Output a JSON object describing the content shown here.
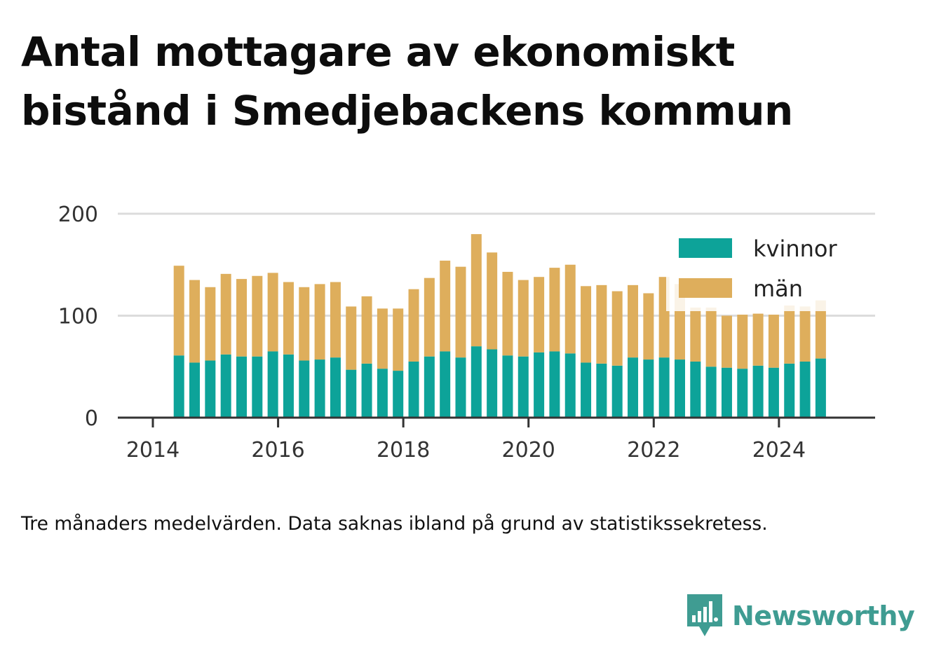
{
  "title": "Antal mottagare av ekonomiskt bistånd i Smedjebackens kommun",
  "note": "Tre månaders medelvärden. Data saknas ibland på grund av statistikssekretess.",
  "brand": {
    "name": "Newsworthy",
    "icon": "newsworthy-bar-chart-icon",
    "color": "#3f9c92"
  },
  "chart_data": {
    "type": "bar",
    "stacked": true,
    "x": [
      "2014-06",
      "2014-09",
      "2014-12",
      "2015-03",
      "2015-06",
      "2015-09",
      "2015-12",
      "2016-03",
      "2016-06",
      "2016-09",
      "2016-12",
      "2017-03",
      "2017-06",
      "2017-09",
      "2017-12",
      "2018-03",
      "2018-06",
      "2018-09",
      "2018-12",
      "2019-03",
      "2019-06",
      "2019-09",
      "2019-12",
      "2020-03",
      "2020-06",
      "2020-09",
      "2020-12",
      "2021-03",
      "2021-06",
      "2021-09",
      "2021-12",
      "2022-03",
      "2022-06",
      "2022-09",
      "2022-12",
      "2023-03",
      "2023-06",
      "2023-09",
      "2023-12",
      "2024-03",
      "2024-06",
      "2024-09"
    ],
    "series": [
      {
        "name": "kvinnor",
        "color": "#0da399",
        "values": [
          61,
          54,
          56,
          62,
          60,
          60,
          65,
          62,
          56,
          57,
          59,
          47,
          53,
          48,
          46,
          55,
          60,
          65,
          59,
          70,
          67,
          61,
          60,
          64,
          65,
          63,
          54,
          53,
          51,
          59,
          57,
          59,
          57,
          55,
          50,
          49,
          48,
          51,
          49,
          53,
          55,
          58
        ]
      },
      {
        "name": "män",
        "color": "#deae5c",
        "values": [
          88,
          81,
          72,
          79,
          76,
          79,
          77,
          71,
          72,
          74,
          74,
          62,
          66,
          59,
          61,
          71,
          77,
          89,
          89,
          110,
          95,
          82,
          75,
          74,
          82,
          87,
          75,
          77,
          73,
          71,
          65,
          79,
          74,
          53,
          58,
          51,
          53,
          51,
          52,
          57,
          54,
          57
        ]
      }
    ],
    "x_ticks": [
      "2014",
      "2016",
      "2018",
      "2020",
      "2022",
      "2024"
    ],
    "y_ticks": [
      "0",
      "100",
      "200"
    ],
    "ylim": [
      0,
      200
    ],
    "xlim": [
      "2014-01",
      "2025-12"
    ],
    "grid": "horizontal",
    "legend": {
      "placement": "top-right",
      "entries": [
        "kvinnor",
        "män"
      ]
    }
  }
}
